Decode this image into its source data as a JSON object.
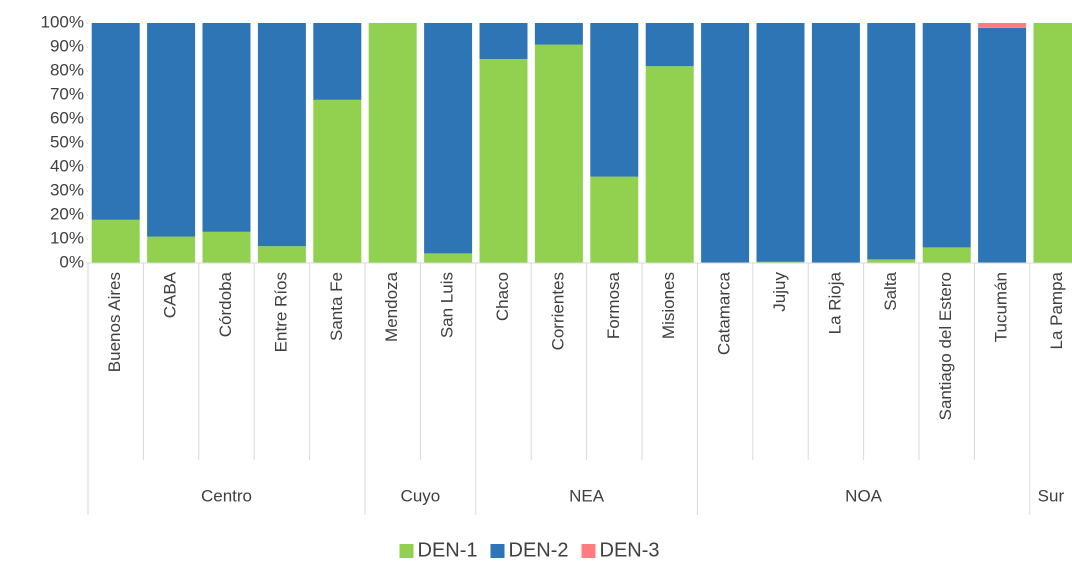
{
  "chart_data": {
    "type": "stacked-bar",
    "groups": [
      {
        "name": "Centro",
        "categories": [
          "Buenos Aires",
          "CABA",
          "Córdoba",
          "Entre Ríos",
          "Santa Fe"
        ]
      },
      {
        "name": "Cuyo",
        "categories": [
          "Mendoza",
          "San Luis"
        ]
      },
      {
        "name": "NEA",
        "categories": [
          "Chaco",
          "Corrientes",
          "Formosa",
          "Misiones"
        ]
      },
      {
        "name": "NOA",
        "categories": [
          "Catamarca",
          "Jujuy",
          "La Rioja",
          "Salta",
          "Santiago del Estero",
          "Tucumán"
        ]
      },
      {
        "name": "Sur",
        "categories": [
          "La Pampa"
        ]
      }
    ],
    "series": [
      {
        "name": "DEN-1",
        "color": "#92d050",
        "values": [
          18,
          11,
          13,
          7,
          68,
          100,
          4,
          85,
          91,
          36,
          82,
          0,
          0.5,
          0,
          1.5,
          6.5,
          0,
          100
        ]
      },
      {
        "name": "DEN-2",
        "color": "#2e75b6",
        "values": [
          82,
          89,
          87,
          93,
          32,
          0,
          96,
          15,
          9,
          64,
          18,
          100,
          99.5,
          100,
          98.5,
          93.5,
          98,
          0
        ]
      },
      {
        "name": "DEN-3",
        "color": "#ff7c80",
        "values": [
          0,
          0,
          0,
          0,
          0,
          0,
          0,
          0,
          0,
          0,
          0,
          0,
          0,
          0,
          0,
          0,
          2,
          0
        ]
      }
    ],
    "ylim": [
      0,
      100
    ],
    "yticks": [
      {
        "value": 0,
        "label": "0%"
      },
      {
        "value": 10,
        "label": "10%"
      },
      {
        "value": 20,
        "label": "20%"
      },
      {
        "value": 30,
        "label": "30%"
      },
      {
        "value": 40,
        "label": "40%"
      },
      {
        "value": 50,
        "label": "50%"
      },
      {
        "value": 60,
        "label": "60%"
      },
      {
        "value": 70,
        "label": "70%"
      },
      {
        "value": 80,
        "label": "80%"
      },
      {
        "value": 90,
        "label": "90%"
      },
      {
        "value": 100,
        "label": "100%"
      }
    ],
    "legend": "bottom"
  }
}
